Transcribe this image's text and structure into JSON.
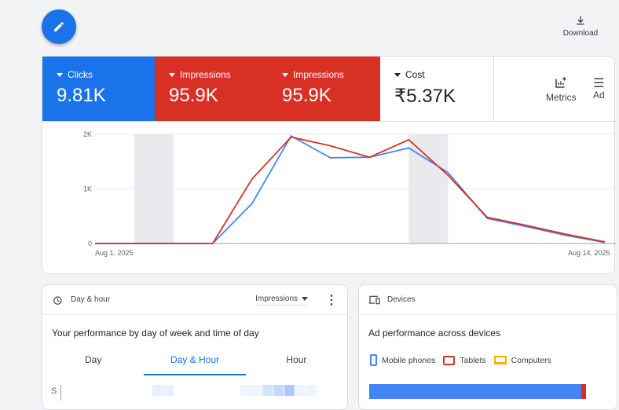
{
  "toolbar": {
    "download_label": "Download"
  },
  "scorecards": [
    {
      "label": "Clicks",
      "value": "9.81K",
      "color": "#1a73e8"
    },
    {
      "label": "Impressions",
      "value": "95.9K",
      "color": "#d93025"
    },
    {
      "label": "Impressions",
      "value": "95.9K",
      "color": "#d93025"
    },
    {
      "label": "Cost",
      "value": "₹5.37K",
      "color": "#ffffff"
    }
  ],
  "tools": {
    "metrics_label": "Metrics",
    "adjust_label": "Ad"
  },
  "chart_data": {
    "type": "line",
    "x": [
      "Aug 1",
      "Aug 2",
      "Aug 3",
      "Aug 4",
      "Aug 5",
      "Aug 6",
      "Aug 7",
      "Aug 8",
      "Aug 9",
      "Aug 10",
      "Aug 11",
      "Aug 12",
      "Aug 13",
      "Aug 14"
    ],
    "x_tick_labels": [
      "Aug 1, 2025",
      "Aug 14, 2025"
    ],
    "y_tick_labels": [
      "0",
      "1K",
      "2K"
    ],
    "ylim": [
      0,
      2000
    ],
    "weekend_bands": [
      [
        "Aug 2",
        "Aug 3"
      ],
      [
        "Aug 9",
        "Aug 10"
      ]
    ],
    "grid": true,
    "series": [
      {
        "color": "#4285f4",
        "values": [
          0,
          0,
          0,
          0,
          730,
          1970,
          1570,
          1580,
          1750,
          1300,
          460,
          310,
          150,
          20
        ]
      },
      {
        "color": "#d93025",
        "values": [
          0,
          0,
          0,
          0,
          1180,
          1950,
          1790,
          1580,
          1900,
          1250,
          480,
          330,
          170,
          30
        ]
      }
    ]
  },
  "day_hour": {
    "title": "Day & hour",
    "metric": "Impressions",
    "heading": "Your performance by day of week and time of day",
    "tabs": [
      "Day",
      "Day & Hour",
      "Hour"
    ],
    "row_label": "S"
  },
  "devices": {
    "title": "Devices",
    "heading": "Ad performance across devices",
    "legend": [
      {
        "label": "Mobile phones",
        "color": "#4285f4"
      },
      {
        "label": "Tablets",
        "color": "#d93025"
      },
      {
        "label": "Computers",
        "color": "#f9ab00"
      }
    ],
    "share": {
      "mobile": 0.98,
      "tablets": 0.02
    }
  }
}
